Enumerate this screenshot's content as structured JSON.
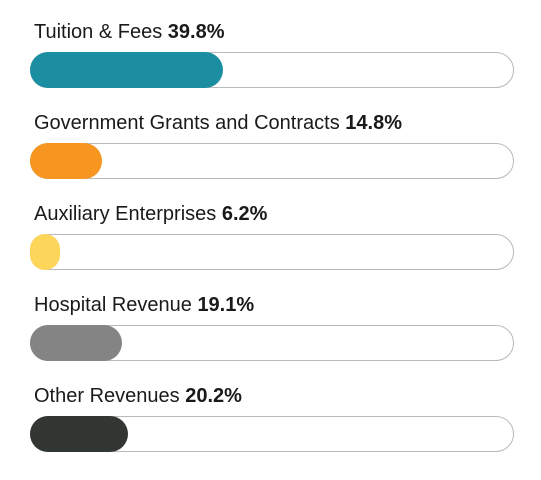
{
  "chart_data": {
    "type": "bar",
    "orientation": "horizontal",
    "categories": [
      "Tuition & Fees",
      "Government Grants and Contracts",
      "Auxiliary Enterprises",
      "Hospital Revenue",
      "Other Revenues"
    ],
    "values": [
      39.8,
      14.8,
      6.2,
      19.1,
      20.2
    ],
    "value_labels": [
      "39.8%",
      "14.8%",
      "6.2%",
      "19.1%",
      "20.2%"
    ],
    "colors": [
      "#1b8fa1",
      "#f6951f",
      "#fcd65a",
      "#848484",
      "#333733"
    ],
    "xlim": [
      0,
      100
    ],
    "grid": false,
    "legend": "none"
  }
}
